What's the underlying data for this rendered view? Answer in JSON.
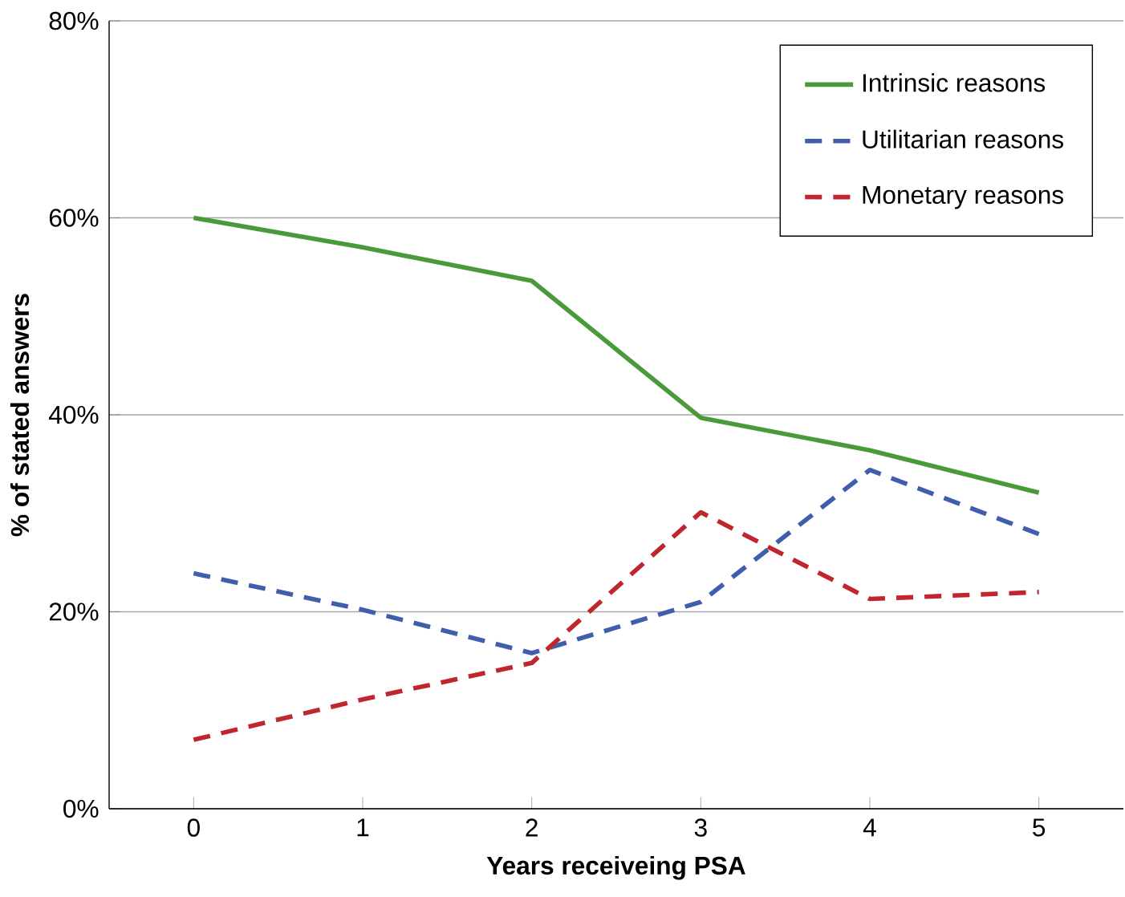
{
  "chart_data": {
    "type": "line",
    "xlabel": "Years receiveing PSA",
    "ylabel": "% of stated answers",
    "categories": [
      "0",
      "1",
      "2",
      "3",
      "4",
      "5"
    ],
    "series": [
      {
        "name": "Intrinsic reasons",
        "color": "#4a9a3c",
        "line_style": "solid",
        "values": [
          60,
          57,
          53.6,
          39.7,
          36.4,
          32.1
        ]
      },
      {
        "name": "Utilitarian reasons",
        "color": "#3f5fad",
        "line_style": "dashed",
        "values": [
          23.9,
          20.2,
          15.8,
          21,
          34.4,
          27.9
        ]
      },
      {
        "name": "Monetary reasons",
        "color": "#c0262d",
        "line_style": "dashed",
        "values": [
          7,
          11.1,
          14.8,
          30.1,
          21.3,
          22
        ]
      }
    ],
    "ylim": [
      0,
      80
    ],
    "yticks": [
      {
        "value": 0,
        "label": "0%"
      },
      {
        "value": 20,
        "label": "20%"
      },
      {
        "value": 40,
        "label": "40%"
      },
      {
        "value": 60,
        "label": "60%"
      },
      {
        "value": 80,
        "label": "80%"
      }
    ],
    "grid": "y",
    "legend": "top right",
    "marker": "none"
  }
}
